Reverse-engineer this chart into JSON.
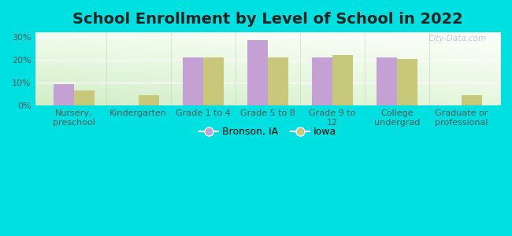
{
  "title": "School Enrollment by Level of School in 2022",
  "categories": [
    "Nursery,\npreschool",
    "Kindergarten",
    "Grade 1 to 4",
    "Grade 5 to 8",
    "Grade 9 to\n12",
    "College\nundergrad",
    "Graduate or\nprofessional"
  ],
  "bronson": [
    9.5,
    0,
    21.0,
    28.5,
    21.0,
    21.0,
    0
  ],
  "iowa": [
    6.5,
    4.5,
    21.0,
    21.0,
    22.0,
    20.5,
    4.5
  ],
  "bronson_color": "#c4a0d4",
  "iowa_color": "#c8c87a",
  "background_outer": "#00e0e0",
  "ylim": [
    0,
    32
  ],
  "yticks": [
    0,
    10,
    20,
    30
  ],
  "ytick_labels": [
    "0%",
    "10%",
    "20%",
    "30%"
  ],
  "title_fontsize": 14,
  "tick_fontsize": 8,
  "legend_fontsize": 9,
  "bar_width": 0.32,
  "watermark": "City-Data.com"
}
